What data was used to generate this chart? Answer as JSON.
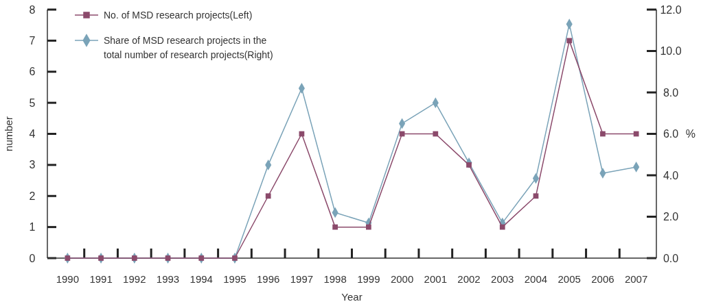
{
  "chart_data": {
    "type": "line",
    "xlabel": "Year",
    "ylabel": "number",
    "y2label": "%",
    "categories": [
      "1990",
      "1991",
      "1992",
      "1993",
      "1994",
      "1995",
      "1996",
      "1997",
      "1998",
      "1999",
      "2000",
      "2001",
      "2002",
      "2003",
      "2004",
      "2005",
      "2006",
      "2007"
    ],
    "series": [
      {
        "name": "No. of MSD research projects(Left)",
        "color": "#8b4a6b",
        "marker": "square",
        "values": [
          0,
          0,
          0,
          0,
          0,
          0,
          2,
          4,
          1,
          1,
          4,
          4,
          3,
          1,
          2,
          7,
          4,
          4
        ]
      },
      {
        "name": "Share of MSD research projects in the total number of research projects(Right)",
        "color": "#7aa3b8",
        "marker": "diamond",
        "axis": "y2",
        "values": [
          0,
          0,
          0,
          0,
          0,
          0,
          4.5,
          8.2,
          2.2,
          1.7,
          6.5,
          7.5,
          4.6,
          1.7,
          3.85,
          11.3,
          4.1,
          4.4
        ]
      }
    ],
    "ylim": [
      0,
      8
    ],
    "yticks": [
      0,
      1,
      2,
      3,
      4,
      5,
      6,
      7,
      8
    ],
    "y2lim": [
      0,
      12
    ],
    "y2ticks": [
      {
        "value": 0,
        "label": "0.0"
      },
      {
        "value": 2,
        "label": "2.0"
      },
      {
        "value": 4,
        "label": "4.0"
      },
      {
        "value": 6,
        "label": "6.0"
      },
      {
        "value": 8,
        "label": "8.0"
      },
      {
        "value": 10,
        "label": "10.0"
      },
      {
        "value": 12,
        "label": "12.0"
      }
    ],
    "legend": "top left",
    "grid": false,
    "line_style": "solid"
  }
}
